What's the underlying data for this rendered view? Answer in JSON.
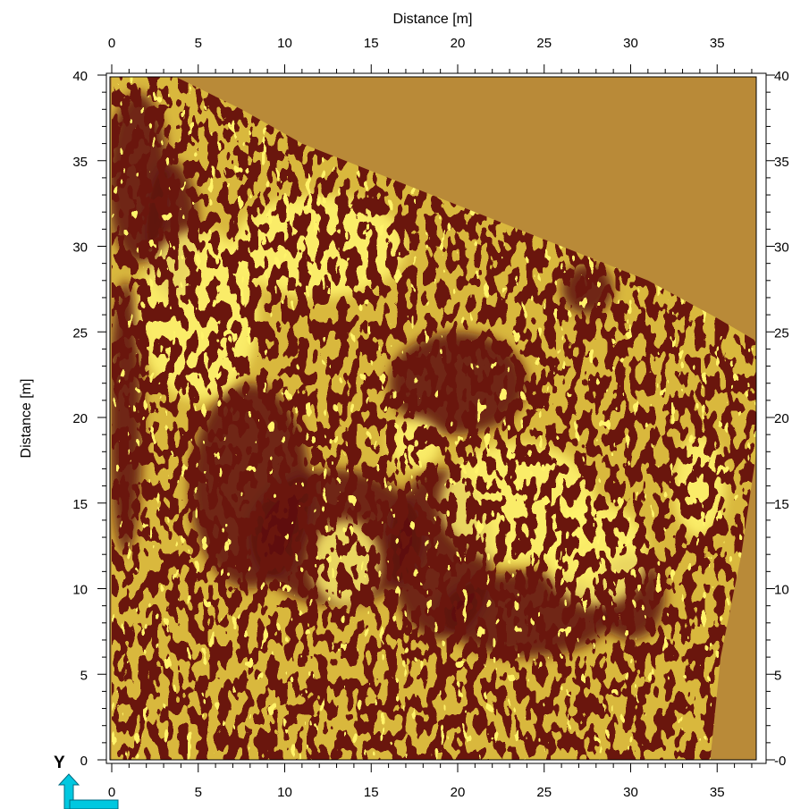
{
  "chart_data": {
    "type": "heatmap",
    "title": "",
    "xlabel": "Distance [m]",
    "ylabel": "Distance [m]",
    "xlim": [
      0,
      38
    ],
    "ylim": [
      0,
      40
    ],
    "x_ticks": [
      "0",
      "5",
      "10",
      "15",
      "20",
      "25",
      "30",
      "35"
    ],
    "y_ticks_left": [
      "0",
      "5",
      "10",
      "15",
      "20",
      "25",
      "30",
      "35",
      "40"
    ],
    "y_ticks_right": [
      "-0",
      "5",
      "10",
      "15",
      "20",
      "25",
      "30",
      "35",
      "40"
    ],
    "survey_boundary_m": [
      [
        0,
        40
      ],
      [
        3.5,
        40
      ],
      [
        7.5,
        38
      ],
      [
        11,
        36
      ],
      [
        16,
        34
      ],
      [
        21,
        32
      ],
      [
        26,
        30
      ],
      [
        31,
        28
      ],
      [
        35,
        25.8
      ],
      [
        37.2,
        24.5
      ],
      [
        37.6,
        22
      ],
      [
        37.2,
        17.5
      ],
      [
        36.4,
        12
      ],
      [
        35.2,
        6
      ],
      [
        34.6,
        0
      ],
      [
        0,
        0
      ]
    ],
    "dark_anomalies_m": [
      {
        "x": 8,
        "y": 16,
        "rx": 3.5,
        "ry": 6
      },
      {
        "x": 13,
        "y": 13,
        "rx": 5,
        "ry": 4
      },
      {
        "x": 19,
        "y": 12,
        "rx": 3,
        "ry": 5
      },
      {
        "x": 24,
        "y": 8.5,
        "rx": 5,
        "ry": 2.5
      },
      {
        "x": 20,
        "y": 22,
        "rx": 4,
        "ry": 3
      },
      {
        "x": 1.5,
        "y": 34,
        "rx": 1.8,
        "ry": 5
      },
      {
        "x": 3.5,
        "y": 31,
        "rx": 1.5,
        "ry": 4
      },
      {
        "x": 0.8,
        "y": 20,
        "rx": 1,
        "ry": 8
      },
      {
        "x": 27.5,
        "y": 27.5,
        "rx": 1.5,
        "ry": 1.5
      },
      {
        "x": 30,
        "y": 9.5,
        "rx": 2,
        "ry": 2.5
      }
    ],
    "bright_anomalies_m": [
      {
        "x": 13.5,
        "y": 11.5,
        "rx": 2,
        "ry": 2.5
      },
      {
        "x": 23.5,
        "y": 15,
        "rx": 4.5,
        "ry": 3.5
      },
      {
        "x": 28,
        "y": 12,
        "rx": 3,
        "ry": 3
      },
      {
        "x": 5,
        "y": 26,
        "rx": 3.5,
        "ry": 5
      },
      {
        "x": 17.5,
        "y": 18.5,
        "rx": 1.5,
        "ry": 1.5
      },
      {
        "x": 34,
        "y": 16,
        "rx": 1.5,
        "ry": 3
      },
      {
        "x": 12,
        "y": 30,
        "rx": 5,
        "ry": 3
      }
    ],
    "colormap": [
      "#5c0a0a",
      "#8a2e10",
      "#b9892f",
      "#e8d54a",
      "#fff56e"
    ],
    "background_color": "#b98a38",
    "grid": false
  },
  "orientation_indicator": {
    "axis_label": "Y",
    "arrow_color": "#00c8e0"
  }
}
